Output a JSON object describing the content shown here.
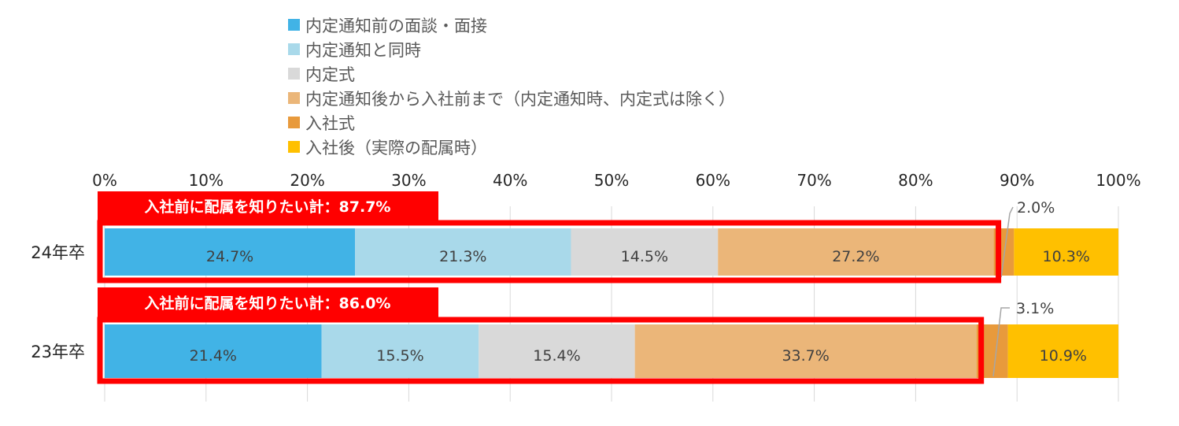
{
  "chart_data": {
    "type": "bar",
    "orientation": "horizontal",
    "stacked": true,
    "categories": [
      "24年卒",
      "23年卒"
    ],
    "series": [
      {
        "name": "内定通知前の面談・面接",
        "values": [
          24.7,
          21.4
        ],
        "labels": [
          "24.7%",
          "21.4%"
        ],
        "color": "#41B3E6"
      },
      {
        "name": "内定通知と同時",
        "values": [
          21.3,
          15.5
        ],
        "labels": [
          "21.3%",
          "15.5%"
        ],
        "color": "#A9D9EA"
      },
      {
        "name": "内定式",
        "values": [
          14.5,
          15.4
        ],
        "labels": [
          "14.5%",
          "15.4%"
        ],
        "color": "#D9D9D9"
      },
      {
        "name": "内定通知後から入社前まで（内定通知時、内定式は除く）",
        "values": [
          27.2,
          33.7
        ],
        "labels": [
          "27.2%",
          "33.7%"
        ],
        "color": "#EBB679"
      },
      {
        "name": "入社式",
        "values": [
          2.0,
          3.1
        ],
        "labels": [
          "2.0%",
          "3.1%"
        ],
        "color": "#E89A3C"
      },
      {
        "name": "入社後（実際の配属時）",
        "values": [
          10.3,
          10.9
        ],
        "labels": [
          "10.3%",
          "10.9%"
        ],
        "color": "#FFC000"
      }
    ],
    "xlim": [
      0,
      100
    ],
    "x_ticks": [
      "0%",
      "10%",
      "20%",
      "30%",
      "40%",
      "50%",
      "60%",
      "70%",
      "80%",
      "90%",
      "100%"
    ],
    "grid": true,
    "legend_position": "top",
    "annotations": [
      {
        "text": "入社前に配属を知りたい計：87.7%",
        "category": "24年卒",
        "value": 87.7
      },
      {
        "text": "入社前に配属を知りたい計：86.0%",
        "category": "23年卒",
        "value": 86.0
      }
    ],
    "highlight_color": "#FF0000"
  }
}
